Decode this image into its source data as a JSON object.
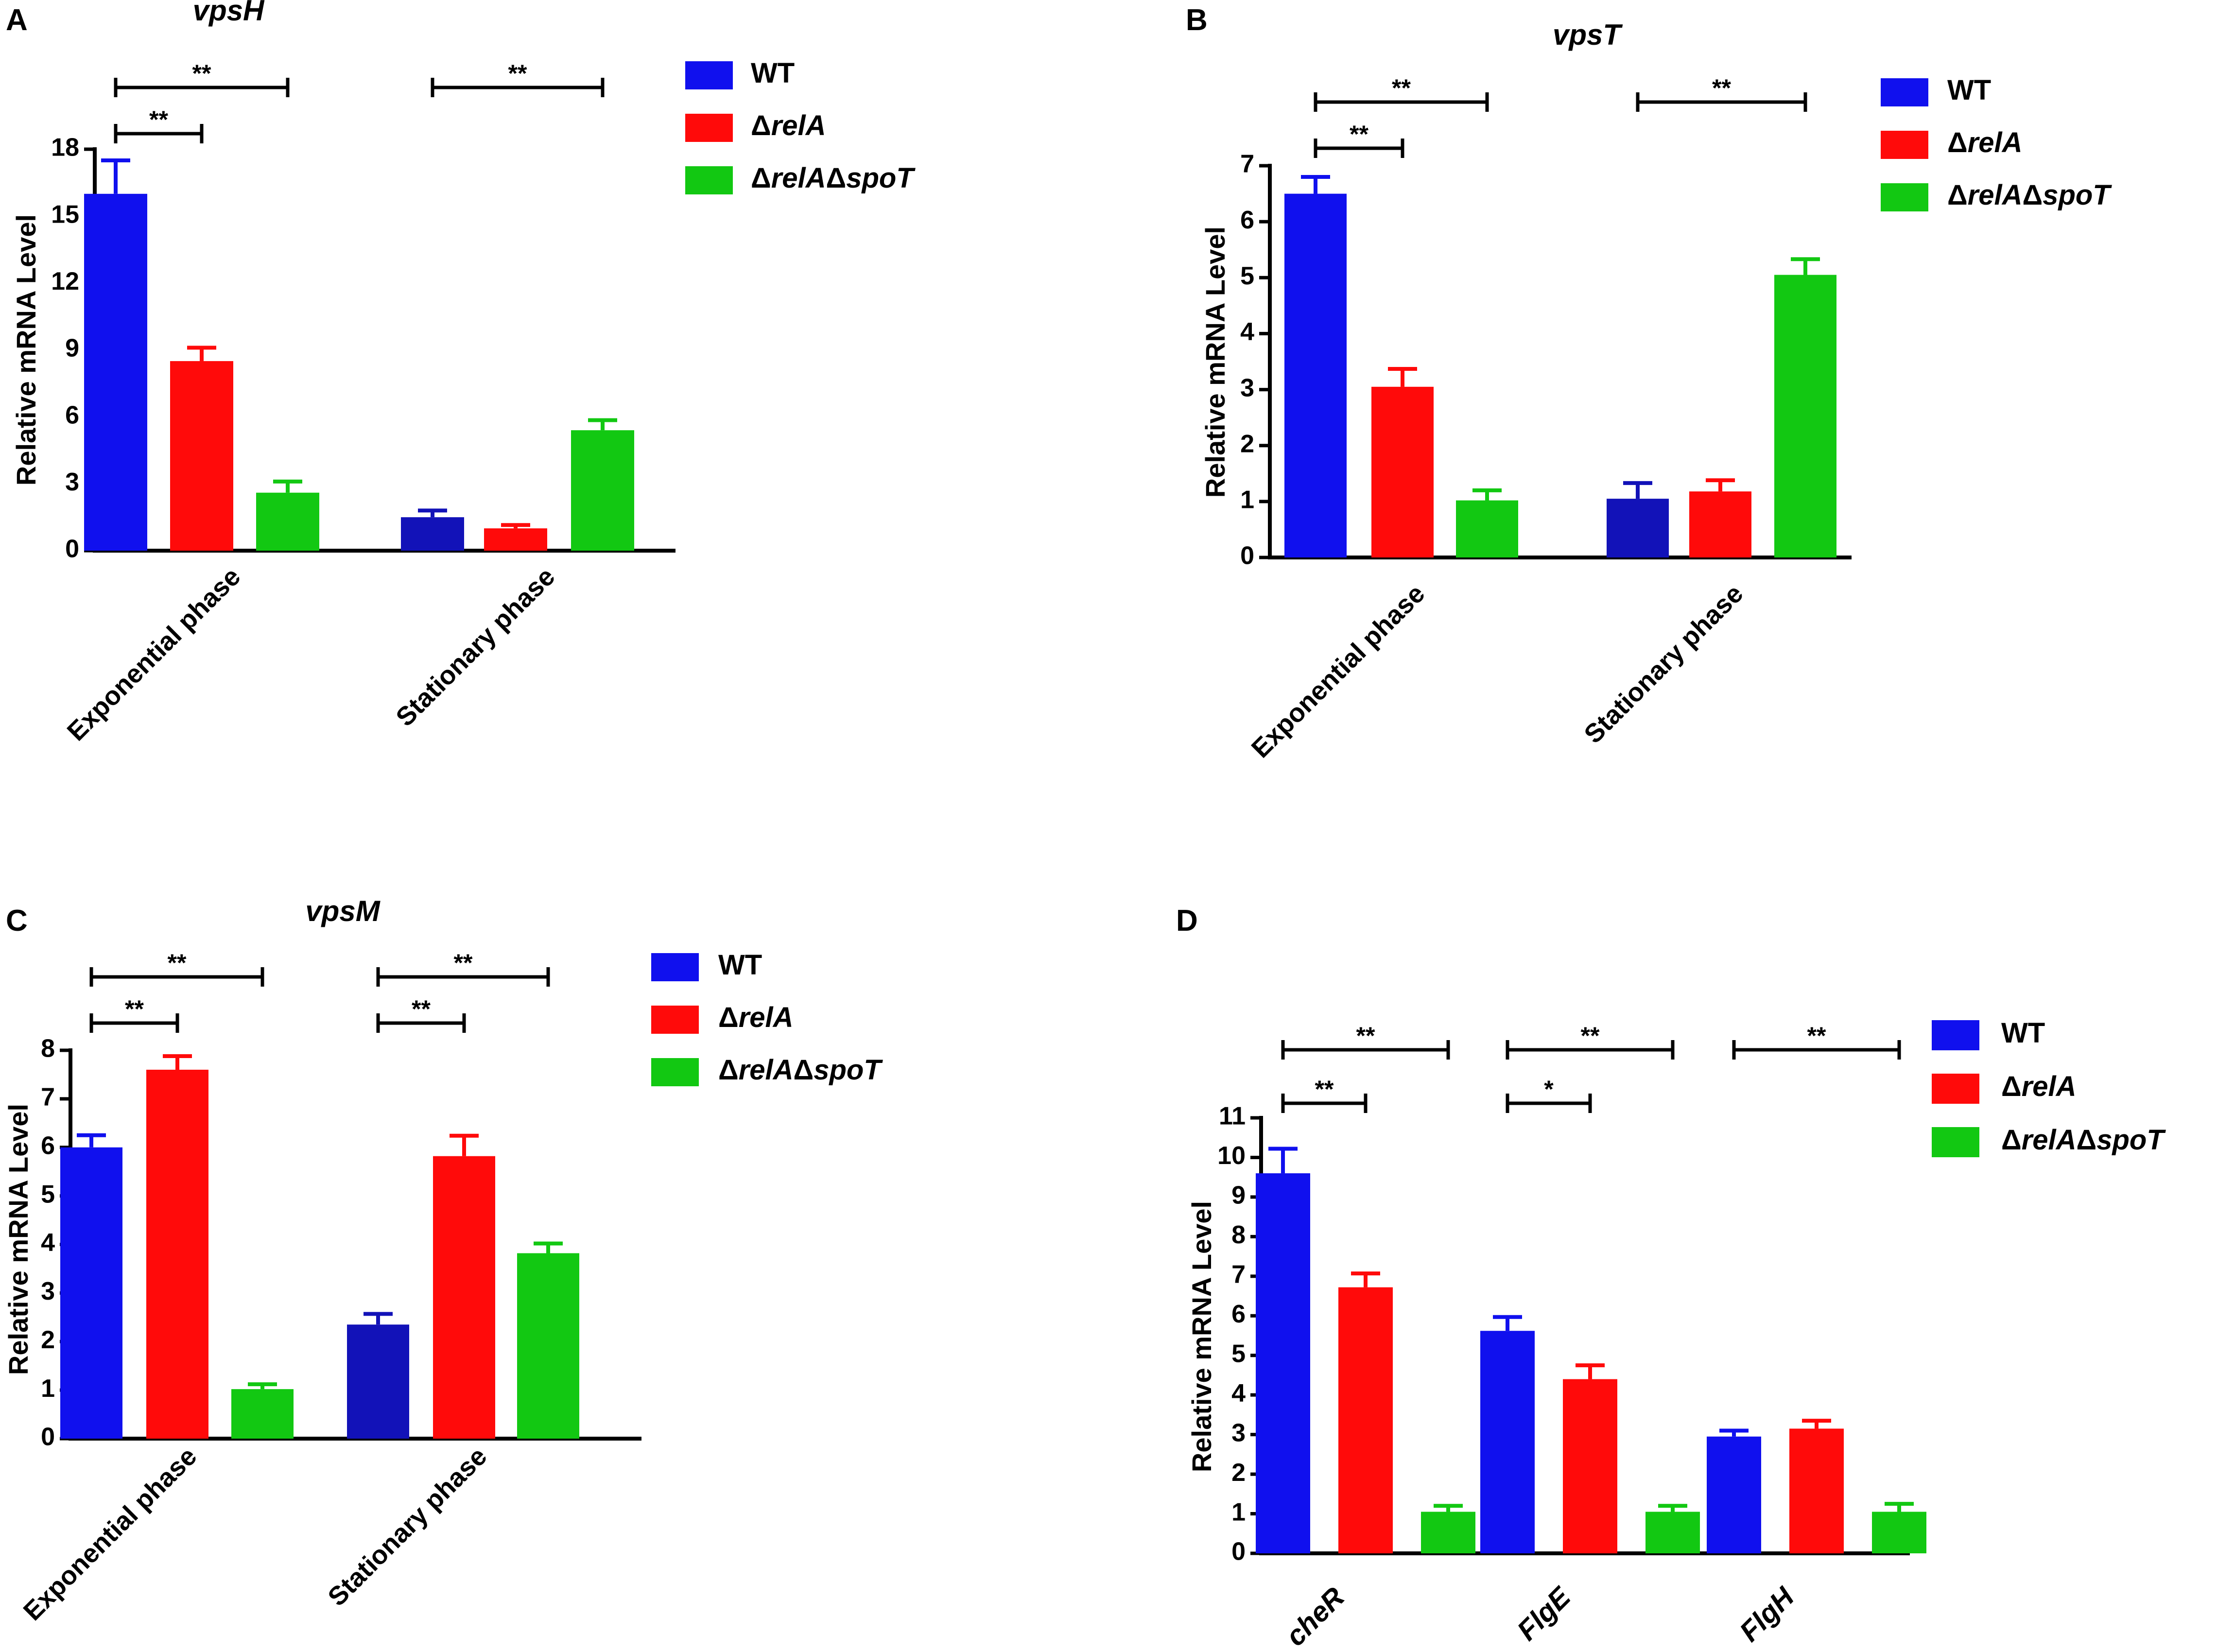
{
  "colors": {
    "WT": "#1010ee",
    "WT_stationary": "#1212b8",
    "relA": "#ff0a0a",
    "relAspoT": "#12c812",
    "axis": "#000000"
  },
  "legend_series": [
    {
      "key": "WT",
      "parts": [
        {
          "t": "WT",
          "it": false
        }
      ]
    },
    {
      "key": "relA",
      "parts": [
        {
          "t": "Δ",
          "it": false
        },
        {
          "t": "relA",
          "it": true
        }
      ]
    },
    {
      "key": "relAspoT",
      "parts": [
        {
          "t": "Δ",
          "it": false
        },
        {
          "t": "relA",
          "it": true
        },
        {
          "t": "Δ",
          "it": false
        },
        {
          "t": "spoT",
          "it": true
        }
      ]
    }
  ],
  "chart_data": [
    {
      "panel": "A",
      "type": "bar",
      "title": "vpsH",
      "ylabel": "Relative mRNA Level",
      "ylim": [
        0,
        18
      ],
      "yticks": [
        0,
        3,
        6,
        9,
        12,
        15,
        18
      ],
      "categories": [
        "Exponential phase",
        "Stationary phase"
      ],
      "category_style": "rotated",
      "series": [
        {
          "name": "WT",
          "values": [
            16.0,
            1.5
          ],
          "errors": [
            1.5,
            0.3
          ]
        },
        {
          "name": "ΔrelA",
          "values": [
            8.5,
            1.0
          ],
          "errors": [
            0.6,
            0.15
          ]
        },
        {
          "name": "ΔrelAΔspoT",
          "values": [
            2.6,
            5.4
          ],
          "errors": [
            0.5,
            0.45
          ]
        }
      ],
      "significance": [
        {
          "category": 0,
          "from": 0,
          "to": 2,
          "text": "**",
          "level": 2
        },
        {
          "category": 0,
          "from": 0,
          "to": 1,
          "text": "**",
          "level": 1
        },
        {
          "category": 1,
          "from": 0,
          "to": 2,
          "text": "**",
          "level": 2
        }
      ]
    },
    {
      "panel": "B",
      "type": "bar",
      "title": "vpsT",
      "ylabel": "Relative mRNA Level",
      "ylim": [
        0,
        7
      ],
      "yticks": [
        0,
        1,
        2,
        3,
        4,
        5,
        6,
        7
      ],
      "categories": [
        "Exponential phase",
        "Stationary phase"
      ],
      "category_style": "rotated",
      "series": [
        {
          "name": "WT",
          "values": [
            6.5,
            1.05
          ],
          "errors": [
            0.3,
            0.28
          ]
        },
        {
          "name": "ΔrelA",
          "values": [
            3.05,
            1.18
          ],
          "errors": [
            0.32,
            0.2
          ]
        },
        {
          "name": "ΔrelAΔspoT",
          "values": [
            1.02,
            5.05
          ],
          "errors": [
            0.18,
            0.28
          ]
        }
      ],
      "significance": [
        {
          "category": 0,
          "from": 0,
          "to": 2,
          "text": "**",
          "level": 2
        },
        {
          "category": 0,
          "from": 0,
          "to": 1,
          "text": "**",
          "level": 1
        },
        {
          "category": 1,
          "from": 0,
          "to": 2,
          "text": "**",
          "level": 2
        }
      ]
    },
    {
      "panel": "C",
      "type": "bar",
      "title": "vpsM",
      "ylabel": "Relative mRNA Level",
      "ylim": [
        0,
        8
      ],
      "yticks": [
        0,
        1,
        2,
        3,
        4,
        5,
        6,
        7,
        8
      ],
      "categories": [
        "Exponential phase",
        "Stationary phase"
      ],
      "category_style": "rotated",
      "series": [
        {
          "name": "WT",
          "values": [
            6.0,
            2.35
          ],
          "errors": [
            0.25,
            0.22
          ]
        },
        {
          "name": "ΔrelA",
          "values": [
            7.6,
            5.82
          ],
          "errors": [
            0.28,
            0.42
          ]
        },
        {
          "name": "ΔrelAΔspoT",
          "values": [
            1.02,
            3.82
          ],
          "errors": [
            0.1,
            0.2
          ]
        }
      ],
      "significance": [
        {
          "category": 0,
          "from": 0,
          "to": 2,
          "text": "**",
          "level": 2
        },
        {
          "category": 0,
          "from": 0,
          "to": 1,
          "text": "**",
          "level": 1
        },
        {
          "category": 1,
          "from": 0,
          "to": 2,
          "text": "**",
          "level": 2
        },
        {
          "category": 1,
          "from": 0,
          "to": 1,
          "text": "**",
          "level": 1
        }
      ]
    },
    {
      "panel": "D",
      "type": "bar",
      "title": "",
      "ylabel": "Relative mRNA Level",
      "ylim": [
        0,
        11
      ],
      "yticks": [
        0,
        1,
        2,
        3,
        4,
        5,
        6,
        7,
        8,
        9,
        10,
        11
      ],
      "categories": [
        "cheR",
        "FlgE",
        "FlgH"
      ],
      "category_style": "italic",
      "series": [
        {
          "name": "WT",
          "values": [
            9.6,
            5.62,
            2.95
          ],
          "errors": [
            0.62,
            0.35,
            0.15
          ]
        },
        {
          "name": "ΔrelA",
          "values": [
            6.72,
            4.4,
            3.15
          ],
          "errors": [
            0.35,
            0.35,
            0.2
          ]
        },
        {
          "name": "ΔrelAΔspoT",
          "values": [
            1.05,
            1.05,
            1.05
          ],
          "errors": [
            0.15,
            0.15,
            0.2
          ]
        }
      ],
      "significance": [
        {
          "category": 0,
          "from": 0,
          "to": 2,
          "text": "**",
          "level": 2
        },
        {
          "category": 0,
          "from": 0,
          "to": 1,
          "text": "**",
          "level": 1
        },
        {
          "category": 1,
          "from": 0,
          "to": 2,
          "text": "**",
          "level": 2
        },
        {
          "category": 1,
          "from": 0,
          "to": 1,
          "text": "*",
          "level": 1
        },
        {
          "category": 2,
          "from": 0,
          "to": 2,
          "text": "**",
          "level": 2
        }
      ]
    }
  ]
}
